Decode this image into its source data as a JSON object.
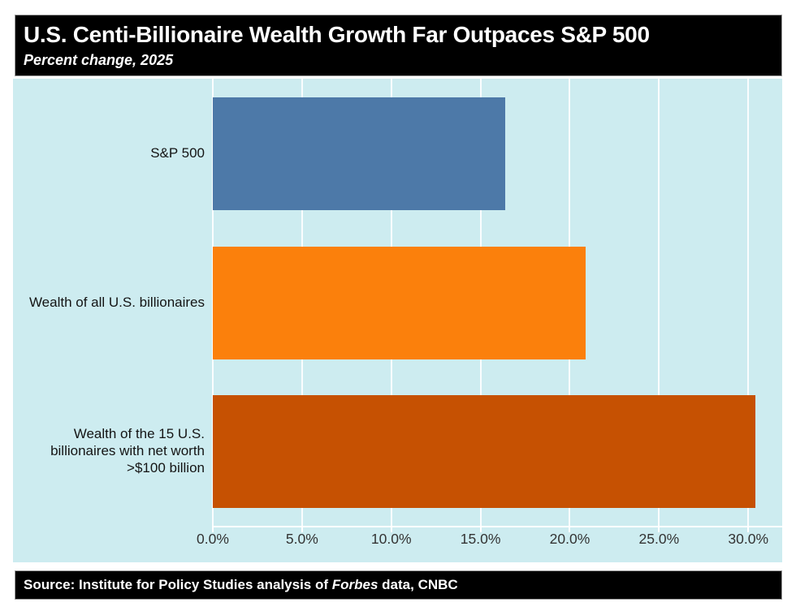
{
  "header": {
    "title": "U.S. Centi-Billionaire Wealth Growth Far Outpaces S&P 500",
    "subtitle": "Percent change, 2025"
  },
  "footer": {
    "prefix": "Source: Institute for Policy Studies analysis of ",
    "italic": "Forbes",
    "suffix": " data, CNBC"
  },
  "chart_data": {
    "type": "bar",
    "orientation": "horizontal",
    "title": "U.S. Centi-Billionaire Wealth Growth Far Outpaces S&P 500",
    "subtitle": "Percent change, 2025",
    "xlabel": "",
    "ylabel": "",
    "grid": true,
    "legend": false,
    "plot_background": "#cdecf0",
    "gridline_color": "#ffffff",
    "categories": [
      "S&P 500",
      "Wealth of all U.S. billionaires",
      "Wealth of the 15 U.S. billionaires with net worth >$100 billion"
    ],
    "category_lines": [
      [
        "S&P 500"
      ],
      [
        "Wealth of all U.S. billionaires"
      ],
      [
        "Wealth of the 15 U.S.",
        "billionaires with net worth",
        ">$100 billion"
      ]
    ],
    "values": [
      16.4,
      20.9,
      30.4
    ],
    "unit": "%",
    "bar_colors": [
      "#4d79a8",
      "#fb800c",
      "#c65102"
    ],
    "x_ticks": [
      0,
      5,
      10,
      15,
      20,
      25,
      30
    ],
    "x_tick_labels": [
      "0.0%",
      "5.0%",
      "10.0%",
      "15.0%",
      "20.0%",
      "25.0%",
      "30.0%"
    ],
    "xlim": [
      0,
      31.9
    ]
  }
}
